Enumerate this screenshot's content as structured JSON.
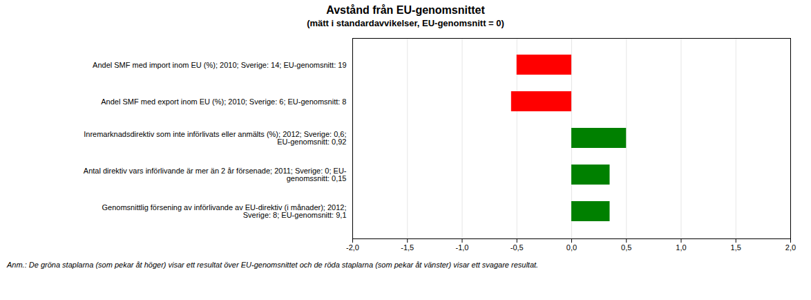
{
  "chart_data": {
    "type": "bar",
    "orientation": "horizontal",
    "title": "Avstånd från EU-genomsnittet",
    "subtitle": "(mätt i standardavvikelser, EU-genomsnitt = 0)",
    "categories": [
      "Andel SMF med import inom EU (%); 2010; Sverige: 14; EU-genomsnitt: 19",
      "Andel SMF med export inom EU (%); 2010; Sverige: 6; EU-genomsnitt: 8",
      "Inremarknadsdirektiv som inte införlivats eller anmälts (%); 2012; Sverige: 0,6;\nEU-genomsnitt: 0,92",
      "Antal direktiv vars införlivande är mer än 2 år försenade; 2011; Sverige: 0; EU-\ngenomssnitt: 0,15",
      "Genomsnittlig försening av införlivande av EU-direktiv (i månader); 2012;\nSverige: 8; EU-genomsnitt: 9,1"
    ],
    "values": [
      -0.5,
      -0.55,
      0.5,
      0.35,
      0.35
    ],
    "colors": [
      "#ff0000",
      "#ff0000",
      "#008000",
      "#008000",
      "#008000"
    ],
    "xlim": [
      -2.0,
      2.0
    ],
    "xticks": [
      {
        "value": -2.0,
        "label": "-2,0"
      },
      {
        "value": -1.5,
        "label": "-1,5"
      },
      {
        "value": -1.0,
        "label": "-1,0"
      },
      {
        "value": -0.5,
        "label": "-0,5"
      },
      {
        "value": 0.0,
        "label": "0,0"
      },
      {
        "value": 0.5,
        "label": "0,5"
      },
      {
        "value": 1.0,
        "label": "1,0"
      },
      {
        "value": 1.5,
        "label": "1,5"
      },
      {
        "value": 2.0,
        "label": "2,0"
      }
    ],
    "grid": true,
    "annotations": [
      "Anm.: De gröna staplarna (som pekar åt höger) visar ett resultat över EU-genomsnittet och de röda staplarna (som pekar åt vänster) visar ett svagare resultat."
    ]
  }
}
